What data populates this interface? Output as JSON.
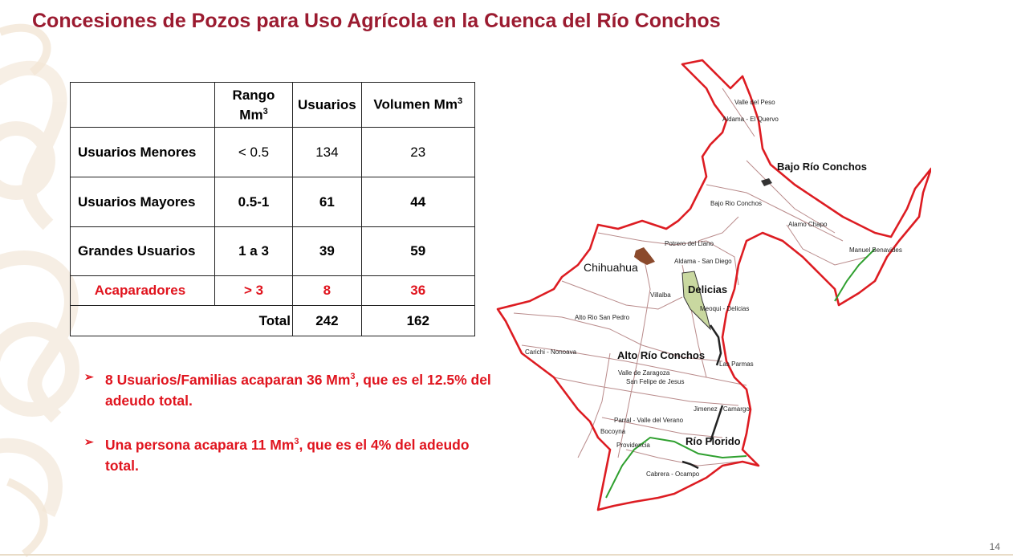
{
  "title": "Concesiones de Pozos para Uso Agrícola en la Cuenca del Río Conchos",
  "table": {
    "headers": {
      "col1": "",
      "rango": "Rango",
      "rango_unit": "Mm",
      "usuarios": "Usuarios",
      "volumen": "Volumen Mm",
      "sup": "3"
    },
    "rows": [
      {
        "label": "Usuarios Menores",
        "rango": "< 0.5",
        "usuarios": "134",
        "volumen": "23"
      },
      {
        "label": "Usuarios Mayores",
        "rango": "0.5-1",
        "usuarios": "61",
        "volumen": "44"
      },
      {
        "label": "Grandes Usuarios",
        "rango": "1 a 3",
        "usuarios": "39",
        "volumen": "59"
      },
      {
        "label": "Acaparadores",
        "rango": "> 3",
        "usuarios": "8",
        "volumen": "36"
      }
    ],
    "total": {
      "label": "Total",
      "usuarios": "242",
      "volumen": "162"
    }
  },
  "bullets": [
    {
      "arrow": "➢",
      "pre": "8 Usuarios/Familias acaparan 36 Mm",
      "sup": "3",
      "post": ", que es el 12.5% del adeudo total."
    },
    {
      "arrow": "➢",
      "pre": "Una persona acapara 11 Mm",
      "sup": "3",
      "post": ", que es el 4% del adeudo total."
    }
  ],
  "map": {
    "labels": {
      "valle_peso": "Valle del Peso",
      "aldama_quervo": "Aldama - El Quervo",
      "bajo_rio_conchos_region": "Bajo Río Conchos",
      "bajo_rio_conchos": "Bajo Rio Conchos",
      "alamo_chapo": "Alamo Chapo",
      "manuel_benavides": "Manuel Benavides",
      "potrero_llano": "Potrero del Llano",
      "aldama_san_diego": "Aldama - San Diego",
      "chihuahua": "Chihuahua",
      "delicias_region": "Delicias",
      "villalba": "Villalba",
      "meoqui_delicias": "Meoqui - Delicias",
      "alto_rio_san_pedro": "Alto Rio San Pedro",
      "carichi_nonoava": "Carichi - Nonoava",
      "alto_rio_conchos_region": "Alto Río Conchos",
      "las_parmas": "Las Parmas",
      "valle_zaragoza": "Valle de Zaragoza",
      "san_felipe": "San Felipe de Jesus",
      "jimenez_camargo": "Jimenez - Camargo",
      "parral": "Parral - Valle del Verano",
      "bocoyna": "Bocoyna",
      "providencia": "Providencia",
      "rio_florido_region": "Río Florido",
      "cabrera_ocampo": "Cabrera - Ocampo"
    },
    "colors": {
      "border": "#dd1c22",
      "inner": "#a87070",
      "river": "#2fa02f"
    }
  },
  "page_number": "14"
}
